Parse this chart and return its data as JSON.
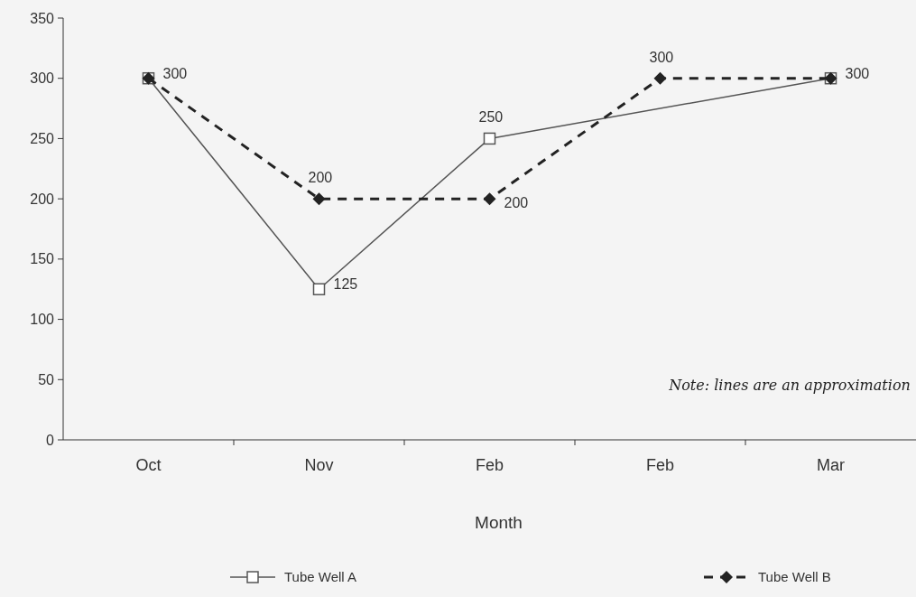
{
  "chart_data": {
    "type": "line",
    "xlabel": "Month",
    "categories": [
      "Oct",
      "Nov",
      "Feb",
      "Feb",
      "Mar"
    ],
    "ylim": [
      0,
      350
    ],
    "yticks": [
      0,
      50,
      100,
      150,
      200,
      250,
      300,
      350
    ],
    "grid": false,
    "legend": "bottom",
    "series": [
      {
        "name": "Tube Well A",
        "color": "#555555",
        "marker": "square",
        "line_style": "solid",
        "values": [
          300,
          125,
          250,
          null,
          300
        ],
        "value_labels": [
          "300",
          "125",
          "250",
          null,
          "300"
        ]
      },
      {
        "name": "Tube Well B",
        "color": "#222222",
        "marker": "diamond",
        "line_style": "dashed",
        "values": [
          300,
          200,
          200,
          300,
          300
        ],
        "value_labels": [
          null,
          "200",
          "200",
          "300",
          null
        ]
      }
    ],
    "annotations": [
      "Note: lines are an approximation"
    ]
  }
}
